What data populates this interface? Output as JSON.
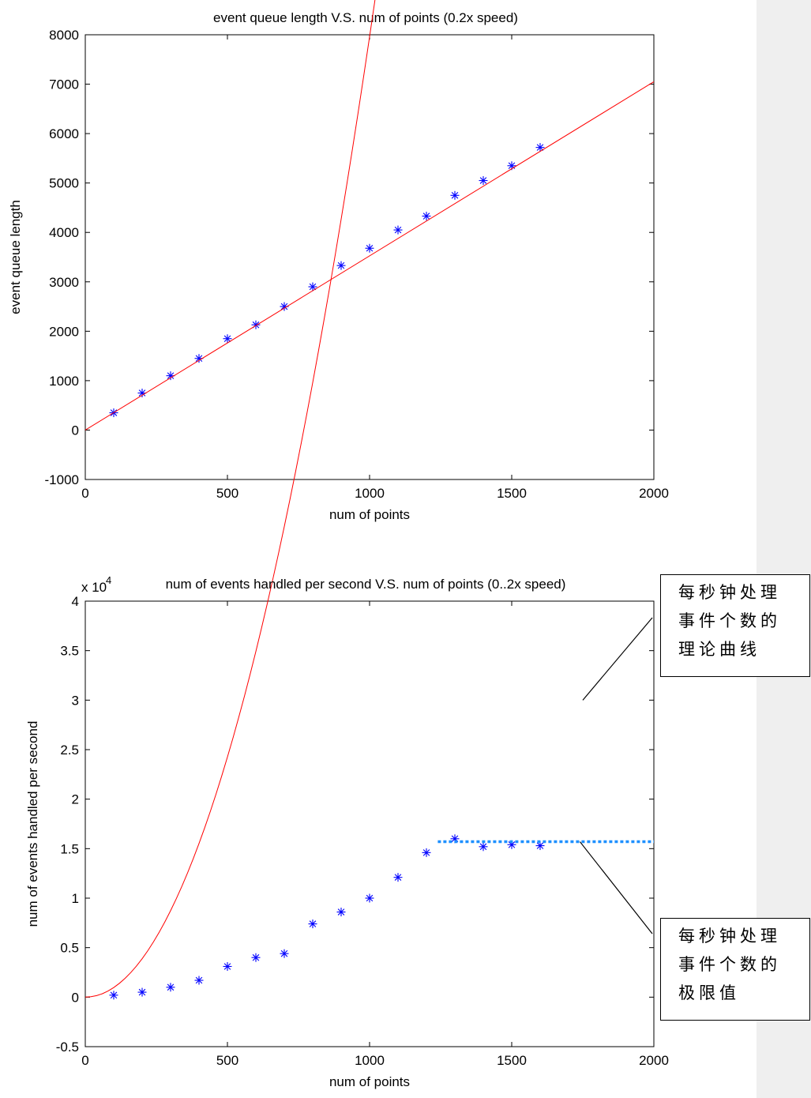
{
  "colors": {
    "fit_line": "#ff0000",
    "markers": "#0000ff",
    "limit_line": "#1e90ff",
    "margin": "#efefef"
  },
  "chart_data": [
    {
      "type": "scatter",
      "title": "event queue length V.S. num of points (0.2x speed)",
      "xlabel": "num of points",
      "ylabel": "event queue length",
      "xlim": [
        0,
        2000
      ],
      "ylim": [
        -1000,
        8000
      ],
      "xticks": [
        0,
        500,
        1000,
        1500,
        2000
      ],
      "yticks": [
        -1000,
        0,
        1000,
        2000,
        3000,
        4000,
        5000,
        6000,
        7000,
        8000
      ],
      "grid": false,
      "series": [
        {
          "marker": "asterisk",
          "x": [
            100,
            200,
            300,
            400,
            500,
            600,
            700,
            800,
            900,
            1000,
            1100,
            1200,
            1300,
            1400,
            1500,
            1600
          ],
          "y": [
            350,
            750,
            1100,
            1450,
            1850,
            2130,
            2500,
            2900,
            3330,
            3680,
            4050,
            4330,
            4750,
            5050,
            5350,
            5720
          ]
        },
        {
          "line": "fit",
          "x": [
            0,
            2000
          ],
          "y": [
            0,
            7050
          ]
        }
      ]
    },
    {
      "type": "scatter",
      "title": "num of events handled per second V.S. num of points (0..2x speed)",
      "xlabel": "num of points",
      "ylabel": "num of events handled per second",
      "y_multiplier": "x 10",
      "y_multiplier_exp": "4",
      "xlim": [
        0,
        2000
      ],
      "ylim": [
        -0.5,
        4
      ],
      "xticks": [
        0,
        500,
        1000,
        1500,
        2000
      ],
      "yticks": [
        "-0.5",
        "0",
        "0.5",
        "1",
        "1.5",
        "2",
        "2.5",
        "3",
        "3.5",
        "4"
      ],
      "grid": false,
      "series": [
        {
          "marker": "asterisk",
          "x": [
            100,
            200,
            300,
            400,
            500,
            600,
            700,
            800,
            900,
            1000,
            1100,
            1200,
            1300,
            1400,
            1500,
            1600
          ],
          "y": [
            0.02,
            0.05,
            0.1,
            0.17,
            0.31,
            0.4,
            0.44,
            0.74,
            0.86,
            1.0,
            1.21,
            1.46,
            1.6,
            1.52,
            1.54,
            1.53
          ]
        },
        {
          "line": "theoretical curve",
          "function": "y = 9.7e-6 * x^2",
          "x_range": [
            0,
            2000
          ]
        },
        {
          "line": "limit",
          "x": [
            1240,
            2000
          ],
          "y": [
            1.57,
            1.57
          ]
        }
      ],
      "annotations": [
        {
          "lines": [
            "每秒钟处理",
            "事件个数的",
            "理论曲线"
          ],
          "points_to": [
            1750,
            3.0
          ]
        },
        {
          "lines": [
            "每秒钟处理",
            "事件个数的",
            "极限值"
          ],
          "points_to": [
            1740,
            1.57
          ]
        }
      ]
    }
  ]
}
